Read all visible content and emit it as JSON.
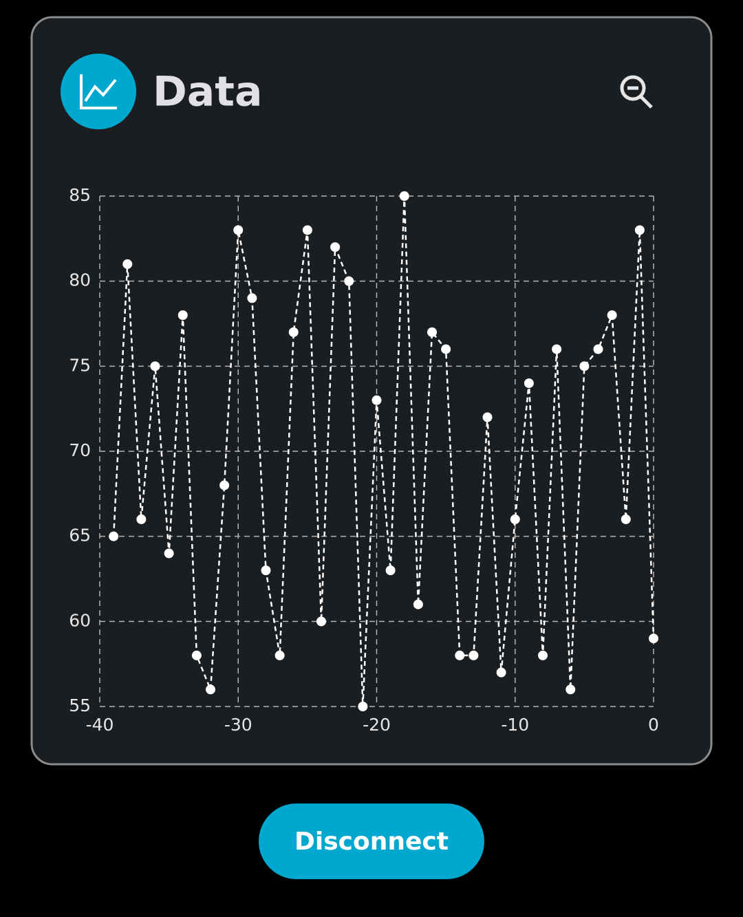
{
  "header": {
    "title": "Data"
  },
  "chart_data": {
    "type": "line",
    "x": [
      -39,
      -38,
      -37,
      -36,
      -35,
      -34,
      -33,
      -32,
      -31,
      -30,
      -29,
      -28,
      -27,
      -26,
      -25,
      -24,
      -23,
      -22,
      -21,
      -20,
      -19,
      -18,
      -17,
      -16,
      -15,
      -14,
      -13,
      -12,
      -11,
      -10,
      -9,
      -8,
      -7,
      -6,
      -5,
      -4,
      -3,
      -2,
      -1,
      0
    ],
    "series": [
      {
        "color": "#ffffff",
        "values": [
          65,
          81,
          66,
          75,
          64,
          78,
          58,
          56,
          68,
          83,
          79,
          63,
          58,
          77,
          83,
          60,
          82,
          80,
          55,
          73,
          63,
          85,
          61,
          77,
          76,
          58,
          58,
          72,
          57,
          66,
          74,
          58,
          76,
          56,
          75,
          76,
          78,
          66,
          83,
          59
        ]
      }
    ],
    "xlim": [
      -40,
      0
    ],
    "xticks": [
      -40,
      -30,
      -20,
      -10,
      0
    ],
    "ylim": [
      55,
      85
    ],
    "yticks": [
      55,
      60,
      65,
      70,
      75,
      80,
      85
    ],
    "grid": true
  },
  "button": {
    "label": "Disconnect"
  }
}
